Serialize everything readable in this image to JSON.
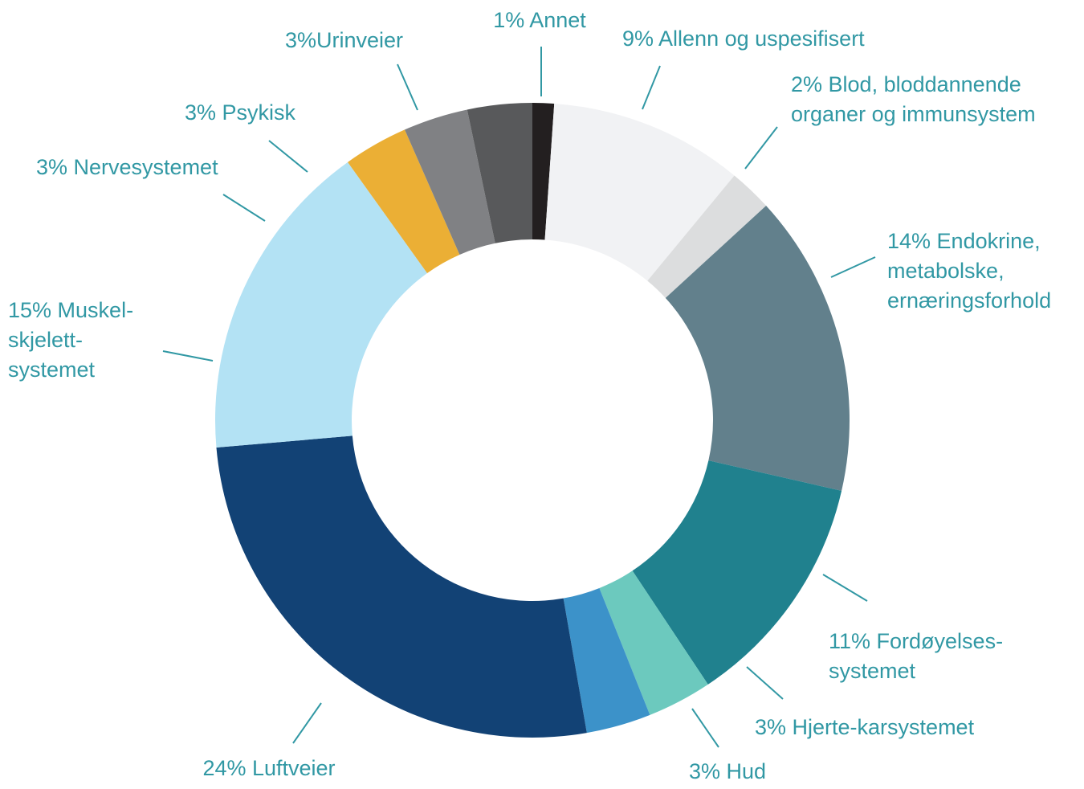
{
  "chart_data": {
    "type": "donut",
    "categories": [
      [
        "1% Annet"
      ],
      [
        "9% Allenn og uspesifisert"
      ],
      [
        "2% Blod, bloddannende",
        "organer og immunsystem"
      ],
      [
        "14% Endokrine,",
        "metabolske,",
        "ernæringsforhold"
      ],
      [
        "11% Fordøyelses-",
        "systemet"
      ],
      [
        "3% Hjerte-karsystemet"
      ],
      [
        "3% Hud"
      ],
      [
        "24% Luftveier"
      ],
      [
        "15% Muskel-",
        "skjelett-",
        "systemet"
      ],
      [
        "3% Nervesystemet"
      ],
      [
        "3% Psykisk"
      ],
      [
        "3%Urinveier"
      ]
    ],
    "values": [
      1,
      9,
      2,
      14,
      11,
      3,
      3,
      24,
      15,
      3,
      3,
      3
    ],
    "colors": [
      "#231f20",
      "#f1f2f4",
      "#dcddde",
      "#62808c",
      "#20818e",
      "#6cc9be",
      "#3c92c9",
      "#124275",
      "#b3e2f4",
      "#ebaf35",
      "#808184",
      "#58595b"
    ]
  }
}
